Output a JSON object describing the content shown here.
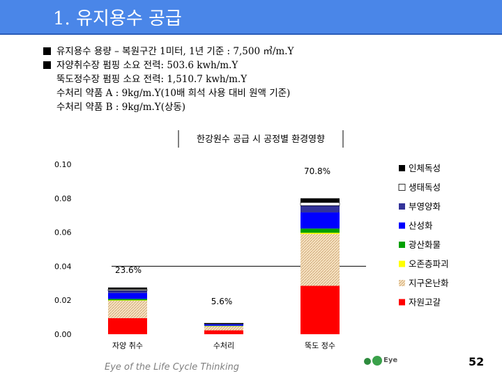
{
  "header": {
    "title": "1. 유지용수 공급"
  },
  "bullets": [
    {
      "text": "유지용수 용량 – 복원구간 1미터, 1년 기준 : 7,500 ㎥/m.Y",
      "marker": true
    },
    {
      "text": "자양취수장 펌핑 소요 전력: 503.6 kwh/m.Y",
      "marker": true
    },
    {
      "text": "뚝도정수장 펌핑 소요 전력: 1,510.7 kwh/m.Y",
      "marker": false
    },
    {
      "text": "수처리 약품 A : 9kg/m.Y(10배 희석 사용 대비 원액 기준)",
      "marker": false
    },
    {
      "text": "수처리 약품 B : 9kg/m.Y(상동)",
      "marker": false
    }
  ],
  "chart_data": {
    "type": "bar",
    "stacked": true,
    "title": "한강원수 공급 시 공정별 환경영향",
    "categories": [
      "자양 취수",
      "수처리",
      "뚝도 정수"
    ],
    "y_ticks": [
      "0.10",
      "0.08",
      "0.06",
      "0.04",
      "0.02",
      "0.00"
    ],
    "ylim": [
      0,
      0.1
    ],
    "percent_labels": [
      "23.6%",
      "5.6%",
      "70.8%"
    ],
    "series": [
      {
        "name": "자원고갈",
        "color": "#ff0000",
        "pattern": "solid",
        "values": [
          0.0095,
          0.0023,
          0.0285
        ]
      },
      {
        "name": "지구온난화",
        "color": "#f3d9b0",
        "pattern": "hatch",
        "values": [
          0.0102,
          0.0024,
          0.0305
        ]
      },
      {
        "name": "오존층파괴",
        "color": "#ffff00",
        "pattern": "solid",
        "values": [
          0.0003,
          0.0001,
          0.0007
        ]
      },
      {
        "name": "광산화물",
        "color": "#00a000",
        "pattern": "solid",
        "values": [
          0.0008,
          0.0002,
          0.0025
        ]
      },
      {
        "name": "산성화",
        "color": "#0000ff",
        "pattern": "solid",
        "values": [
          0.0035,
          0.0008,
          0.0095
        ]
      },
      {
        "name": "부영양화",
        "color": "#333399",
        "pattern": "solid",
        "values": [
          0.0014,
          0.0003,
          0.004
        ]
      },
      {
        "name": "생태독성",
        "color": "#ffffff",
        "pattern": "outline",
        "values": [
          0.0006,
          0.0002,
          0.0018
        ]
      },
      {
        "name": "인체독성",
        "color": "#000000",
        "pattern": "solid",
        "values": [
          0.0012,
          0.0003,
          0.0025
        ]
      }
    ],
    "reference_line": 0.04
  },
  "footer": {
    "tagline": "Eye of the Life Cycle Thinking",
    "logo_text": "Eye",
    "page_number": "52"
  }
}
